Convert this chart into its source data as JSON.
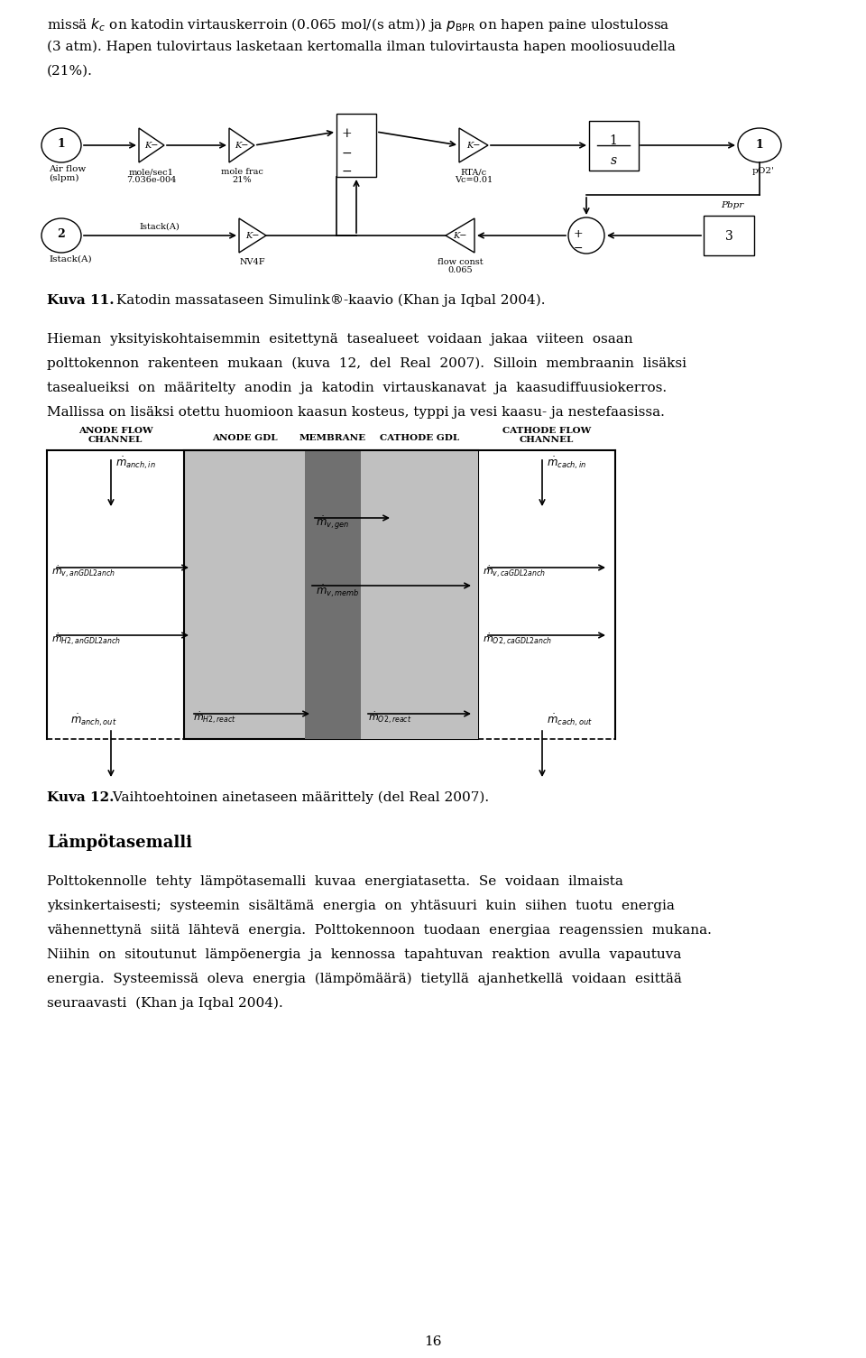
{
  "page_width": 9.6,
  "page_height": 15.05,
  "bg_color": "#ffffff",
  "text_color": "#000000",
  "body_fontsize": 11.0,
  "anode_gdl_color": "#b8b8b8",
  "membrane_color": "#787878",
  "cathode_gdl_color": "#b8b8b8",
  "para1_line1": "missä $k_c$ on katodin virtauskerroin (0.065 mol/(s atm)) ja $p_{\\mathrm{BPR}}$ on hapen paine ulostulossa",
  "para1_line2": "(3 atm). Hapen tulovirtaus lasketaan kertomalla ilman tulovirtausta hapen mooliosuudella",
  "para1_line3": "(21%).",
  "kuva11_bold": "Kuva 11.",
  "kuva11_rest": " Katodin massataseen Simulink®-kaavio (Khan ja Iqbal 2004).",
  "para2_line1": "Hieman  yksityiskohtaisemmin  esitettynä  tasealueet  voidaan  jakaa  viiteen  osaan",
  "para2_line2": "polttokennon  rakenteen  mukaan  (kuva  12,  del  Real  2007).  Silloin  membraanin  lisäksi",
  "para2_line3": "tasealueiksi  on  määritelty  anodin  ja  katodin  virtauskanavat  ja  kaasudiffuusiokerros.",
  "para2_line4": "Mallissa on lisäksi otettu huomioon kaasun kosteus, typpi ja vesi kaasu- ja nestefaasissa.",
  "kuva12_bold": "Kuva 12.",
  "kuva12_rest": " Vaihtoehtoinen ainetaseen määrittely (del Real 2007).",
  "section_title": "Lämpötasemalli",
  "para3_line1": "Polttokennolle  tehty  lämpötasemalli  kuvaa  energiatasetta.  Se  voidaan  ilmaista",
  "para3_line2": "yksinkertaisesti;  systeemin  sisältämä  energia  on  yhtäsuuri  kuin  siihen  tuotu  energia",
  "para3_line3": "vähennettynä  siitä  lähtevä  energia.  Polttokennoon  tuodaan  energiaa  reagenssien  mukana.",
  "para3_line4": "Niihin  on  sitoutunut  lämpöenergia  ja  kennossa  tapahtuvan  reaktion  avulla  vapautuva",
  "para3_line5": "energia.  Systeemissä  oleva  energia  (lämpömäärä)  tietyllä  ajanhetkellä  voidaan  esittää",
  "para3_line6": "seuraavasti  (Khan ja Iqbal 2004).",
  "page_number": "16"
}
